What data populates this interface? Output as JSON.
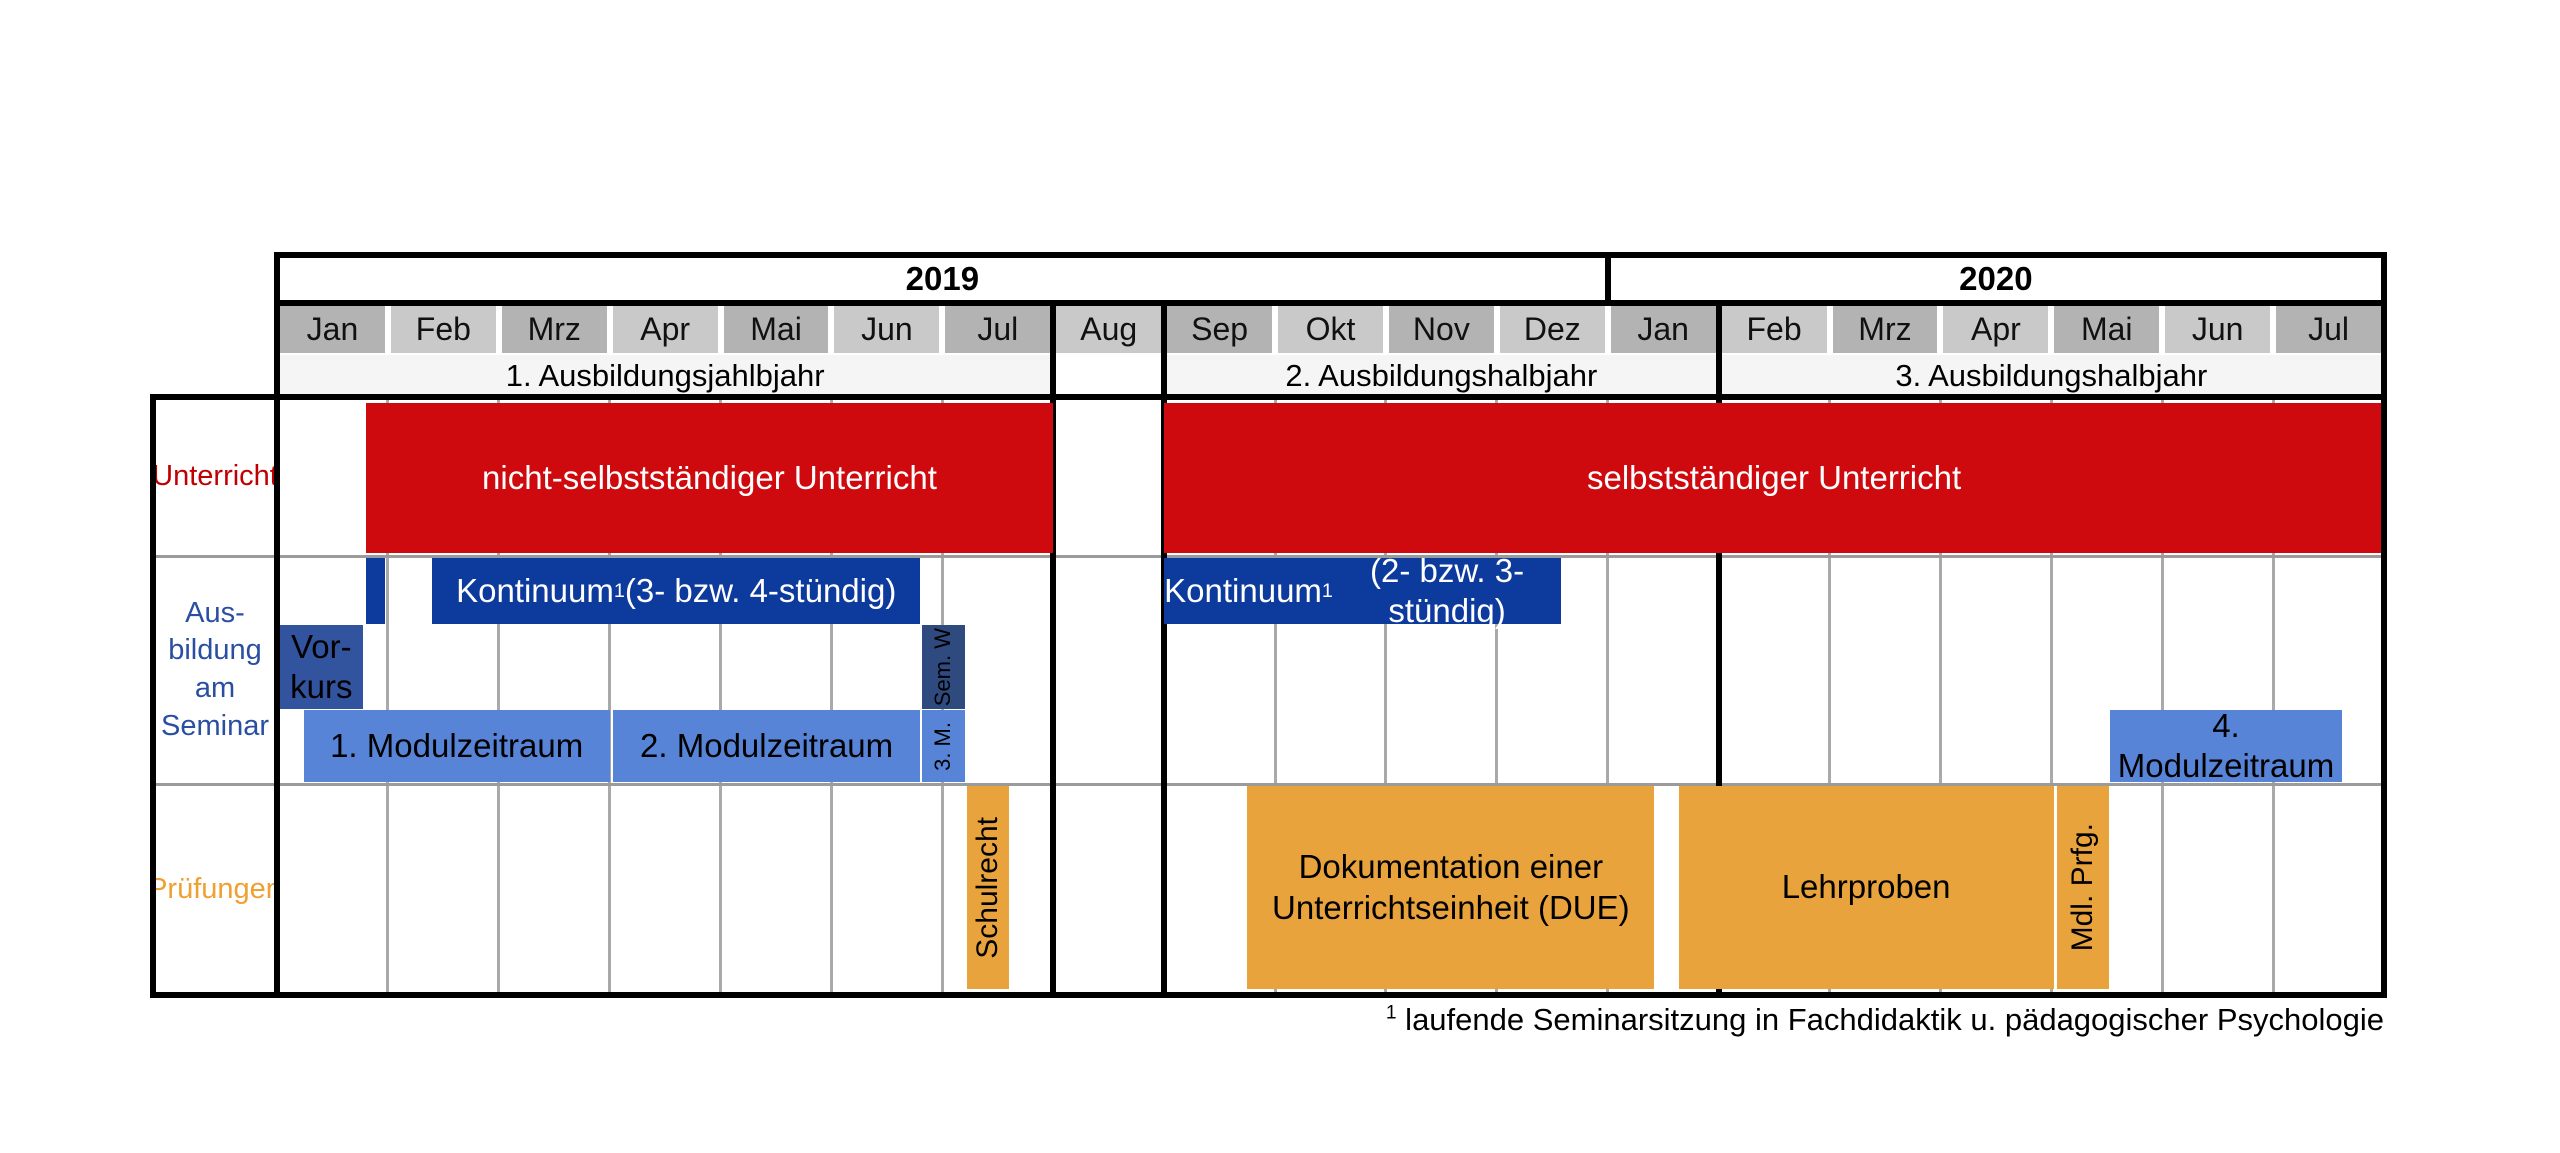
{
  "chart_data": {
    "type": "gantt",
    "title": "",
    "time_unit": "months",
    "axis": {
      "years": [
        {
          "label": "2019",
          "start": 0,
          "end": 12
        },
        {
          "label": "2020",
          "start": 12,
          "end": 19
        }
      ],
      "months": [
        "Jan",
        "Feb",
        "Mrz",
        "Apr",
        "Mai",
        "Jun",
        "Jul",
        "Aug",
        "Sep",
        "Okt",
        "Nov",
        "Dez",
        "Jan",
        "Feb",
        "Mrz",
        "Apr",
        "Mai",
        "Jun",
        "Jul"
      ],
      "periods": [
        {
          "label": "1. Ausbildungsjahlbjahr",
          "start": 0,
          "end": 7
        },
        {
          "label": "2. Ausbildungshalbjahr",
          "start": 8,
          "end": 13
        },
        {
          "label": "3. Ausbildungshalbjahr",
          "start": 13,
          "end": 19
        }
      ],
      "gap_month_index": 7
    },
    "rows": [
      {
        "id": "unterricht",
        "label_lines": [
          "Unterricht"
        ],
        "label_color": "#c00000"
      },
      {
        "id": "seminar",
        "label_lines": [
          "Aus-",
          "bildung",
          "am",
          "Seminar"
        ],
        "label_color": "#2a4fa2"
      },
      {
        "id": "pruefungen",
        "label_lines": [
          "Prüfungen"
        ],
        "label_color": "#f0a030"
      }
    ],
    "bars": [
      {
        "id": "nicht-selbststaendiger-unterricht",
        "row": "unterricht",
        "band": "full",
        "start": 0.8,
        "end": 7.0,
        "label": "nicht-selbstständiger Unterricht",
        "color": "#cf0a0e",
        "text_color": "#ffffff"
      },
      {
        "id": "selbststaendiger-unterricht",
        "row": "unterricht",
        "band": "full",
        "start": 8.0,
        "end": 19.0,
        "label": "selbstständiger Unterricht",
        "color": "#cf0a0e",
        "text_color": "#ffffff"
      },
      {
        "id": "seminar-startblock",
        "row": "seminar",
        "band": "top",
        "start": 0.8,
        "end": 0.97,
        "label": "",
        "color": "#0d3a9d",
        "text_color": "#ffffff"
      },
      {
        "id": "kontinuum-1",
        "row": "seminar",
        "band": "top",
        "start": 1.4,
        "end": 5.8,
        "label": "Kontinuum",
        "sup": "1",
        "label_rest": " (3- bzw. 4-stündig)",
        "color": "#0d3a9d",
        "text_color": "#ffffff"
      },
      {
        "id": "kontinuum-2",
        "row": "seminar",
        "band": "top",
        "start": 8.0,
        "end": 11.58,
        "label": "Kontinuum",
        "sup": "1",
        "label_rest": " (2- bzw. 3-stündig)",
        "color": "#0d3a9d",
        "text_color": "#ffffff"
      },
      {
        "id": "vorkurs",
        "row": "seminar",
        "band": "mid",
        "start": 0.02,
        "end": 0.78,
        "label_lines": [
          "Vor-",
          "kurs"
        ],
        "color": "#32539e",
        "text_color": "#000000"
      },
      {
        "id": "seminarwoche",
        "row": "seminar",
        "band": "mid",
        "start": 5.82,
        "end": 6.2,
        "label": "Sem. W",
        "vertical": true,
        "vsize": "sm",
        "color": "#2e4a7e",
        "text_color": "#000000"
      },
      {
        "id": "modulzeitraum-1",
        "row": "seminar",
        "band": "bottom",
        "start": 0.24,
        "end": 3.0,
        "label": "1. Modulzeitraum",
        "color": "#5884d8",
        "text_color": "#000000"
      },
      {
        "id": "modulzeitraum-2",
        "row": "seminar",
        "band": "bottom",
        "start": 3.03,
        "end": 5.8,
        "label": "2. Modulzeitraum",
        "color": "#5884d8",
        "text_color": "#000000"
      },
      {
        "id": "modulzeitraum-3",
        "row": "seminar",
        "band": "bottom",
        "start": 5.82,
        "end": 6.2,
        "label": "3. M.",
        "vertical": true,
        "vsize": "sm",
        "color": "#5884d8",
        "text_color": "#000000"
      },
      {
        "id": "modulzeitraum-4",
        "row": "seminar",
        "band": "bottom",
        "start": 16.53,
        "end": 18.62,
        "label": "4. Modulzeitraum",
        "color": "#5884d8",
        "text_color": "#000000"
      },
      {
        "id": "schulrecht",
        "row": "pruefungen",
        "band": "full",
        "start": 6.22,
        "end": 6.6,
        "label": "Schulrecht",
        "vertical": true,
        "vsize": "lg",
        "color": "#e8a33c",
        "text_color": "#000000"
      },
      {
        "id": "due",
        "row": "pruefungen",
        "band": "full",
        "start": 8.75,
        "end": 12.42,
        "label_lines": [
          "Dokumentation einer",
          "Unterrichtseinheit (DUE)"
        ],
        "color": "#e8a33c",
        "text_color": "#000000"
      },
      {
        "id": "lehrproben",
        "row": "pruefungen",
        "band": "full",
        "start": 12.64,
        "end": 16.02,
        "label": "Lehrproben",
        "color": "#e8a33c",
        "text_color": "#000000"
      },
      {
        "id": "muendliche-pruefung",
        "row": "pruefungen",
        "band": "full",
        "start": 16.05,
        "end": 16.52,
        "label": "Mdl. Prfg.",
        "vertical": true,
        "vsize": "lg",
        "color": "#e8a33c",
        "text_color": "#000000"
      }
    ],
    "footnote": {
      "sup": "1",
      "text": " laufende Seminarsitzung in Fachdidaktik u. pädagogischer Psychologie"
    },
    "colors": {
      "month_cell_dark": "#b3b3b3",
      "month_cell_light": "#c9c9c9",
      "period_bg": "#f5f5f5",
      "grid": "#a9a9a9",
      "border": "#000000"
    }
  }
}
